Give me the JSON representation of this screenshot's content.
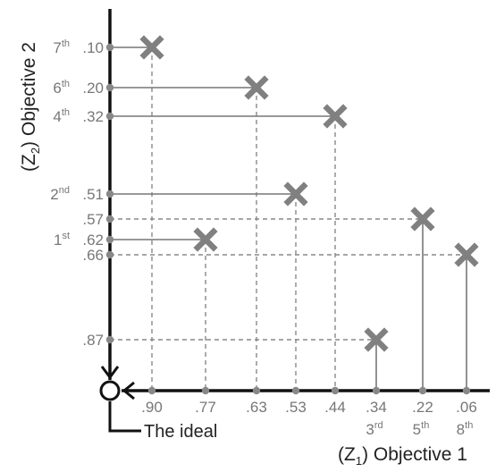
{
  "x_axis_title": {
    "open": "(Z",
    "sub": "1",
    "close": ") Objective 1"
  },
  "y_axis_title": {
    "open": "(Z",
    "sub": "2",
    "close": ") Objective 2"
  },
  "ideal_label": "The ideal",
  "x_ticks": [
    ".90",
    ".77",
    ".63",
    ".53",
    ".44",
    ".34",
    ".22",
    ".06"
  ],
  "y_ticks": [
    ".10",
    ".20",
    ".32",
    ".51",
    ".57",
    ".62",
    ".66",
    ".87"
  ],
  "x_ranks": [
    {
      "tick": ".34",
      "num": "3",
      "suffix": "rd"
    },
    {
      "tick": ".22",
      "num": "5",
      "suffix": "th"
    },
    {
      "tick": ".06",
      "num": "8",
      "suffix": "th"
    }
  ],
  "y_ranks": [
    {
      "tick": ".10",
      "num": "7",
      "suffix": "th"
    },
    {
      "tick": ".20",
      "num": "6",
      "suffix": "th"
    },
    {
      "tick": ".32",
      "num": "4",
      "suffix": "th"
    },
    {
      "tick": ".51",
      "num": "2",
      "suffix": "nd"
    },
    {
      "tick": ".62",
      "num": "1",
      "suffix": "st"
    }
  ],
  "solutions": [
    {
      "z1": ".90",
      "z2": ".10",
      "rank": "7th"
    },
    {
      "z1": ".63",
      "z2": ".20",
      "rank": "6th"
    },
    {
      "z1": ".44",
      "z2": ".32",
      "rank": "4th"
    },
    {
      "z1": ".53",
      "z2": ".51",
      "rank": "2nd"
    },
    {
      "z1": ".22",
      "z2": ".57",
      "rank": "5th"
    },
    {
      "z1": ".77",
      "z2": ".62",
      "rank": "1st"
    },
    {
      "z1": ".06",
      "z2": ".66",
      "rank": "8th"
    },
    {
      "z1": ".34",
      "z2": ".87",
      "rank": "3rd"
    }
  ],
  "colors": {
    "axis": "#111111",
    "marker": "#808080",
    "solid_line": "#777777",
    "dashed_line": "#888888",
    "tick_text": "#777777",
    "title_text": "#222222"
  }
}
